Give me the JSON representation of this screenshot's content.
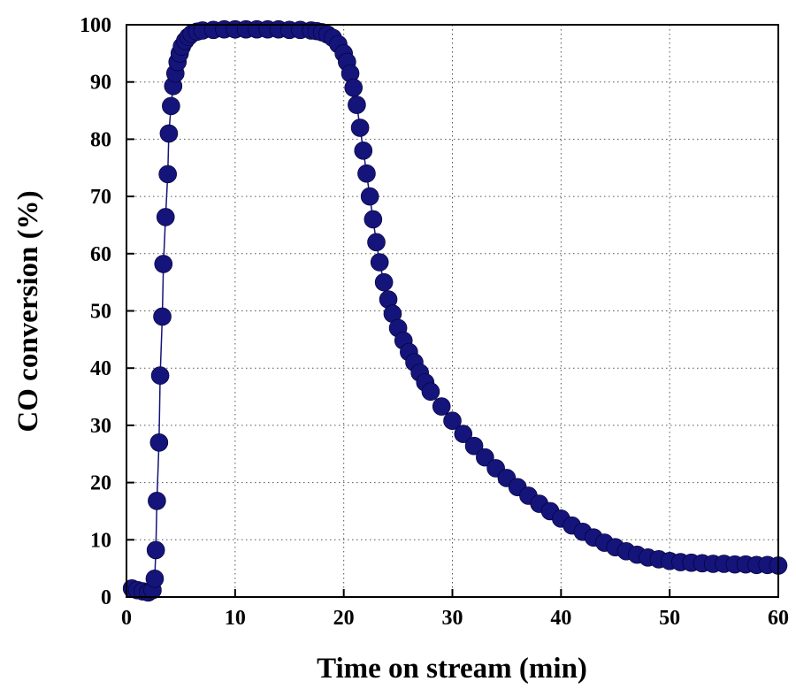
{
  "chart_data": {
    "type": "scatter",
    "title": "",
    "xlabel": "Time on stream (min)",
    "ylabel": "CO conversion (%)",
    "xlim": [
      0,
      60
    ],
    "ylim": [
      0,
      100
    ],
    "xticks": [
      "0",
      "10",
      "20",
      "30",
      "40",
      "50",
      "60"
    ],
    "yticks": [
      "0",
      "10",
      "20",
      "30",
      "40",
      "50",
      "60",
      "70",
      "80",
      "90",
      "100"
    ],
    "grid": true,
    "marker_color": "#14147a",
    "series": [
      {
        "points": [
          [
            0.5,
            1.5
          ],
          [
            1.0,
            1.2
          ],
          [
            1.5,
            1.0
          ],
          [
            2.0,
            0.8
          ],
          [
            2.4,
            1.2
          ],
          [
            2.6,
            3.2
          ],
          [
            2.7,
            8.2
          ],
          [
            2.8,
            16.8
          ],
          [
            3.0,
            27.0
          ],
          [
            3.1,
            38.7
          ],
          [
            3.3,
            49.0
          ],
          [
            3.4,
            58.2
          ],
          [
            3.6,
            66.4
          ],
          [
            3.8,
            73.9
          ],
          [
            3.9,
            81.0
          ],
          [
            4.1,
            85.8
          ],
          [
            4.3,
            89.3
          ],
          [
            4.5,
            91.5
          ],
          [
            4.7,
            93.5
          ],
          [
            4.9,
            95.0
          ],
          [
            5.1,
            96.2
          ],
          [
            5.4,
            97.2
          ],
          [
            5.7,
            97.9
          ],
          [
            6.0,
            98.4
          ],
          [
            6.5,
            98.8
          ],
          [
            7.0,
            99.0
          ],
          [
            8.0,
            99.1
          ],
          [
            9.0,
            99.2
          ],
          [
            10.0,
            99.2
          ],
          [
            11.0,
            99.2
          ],
          [
            12.0,
            99.2
          ],
          [
            13.0,
            99.2
          ],
          [
            14.0,
            99.2
          ],
          [
            15.0,
            99.1
          ],
          [
            16.0,
            99.1
          ],
          [
            17.0,
            99.0
          ],
          [
            17.5,
            98.9
          ],
          [
            18.0,
            98.7
          ],
          [
            18.5,
            98.3
          ],
          [
            19.0,
            97.7
          ],
          [
            19.5,
            96.6
          ],
          [
            20.0,
            95.0
          ],
          [
            20.3,
            93.5
          ],
          [
            20.6,
            91.5
          ],
          [
            20.9,
            89.0
          ],
          [
            21.2,
            86.0
          ],
          [
            21.5,
            82.0
          ],
          [
            21.8,
            78.0
          ],
          [
            22.1,
            74.0
          ],
          [
            22.4,
            70.0
          ],
          [
            22.7,
            66.0
          ],
          [
            23.0,
            62.0
          ],
          [
            23.3,
            58.5
          ],
          [
            23.7,
            55.0
          ],
          [
            24.1,
            52.0
          ],
          [
            24.5,
            49.5
          ],
          [
            25.0,
            47.0
          ],
          [
            25.5,
            44.8
          ],
          [
            26.0,
            42.8
          ],
          [
            26.5,
            41.0
          ],
          [
            27.0,
            39.2
          ],
          [
            27.5,
            37.5
          ],
          [
            28.0,
            35.9
          ],
          [
            29.0,
            33.3
          ],
          [
            30.0,
            30.8
          ],
          [
            31.0,
            28.5
          ],
          [
            32.0,
            26.4
          ],
          [
            33.0,
            24.4
          ],
          [
            34.0,
            22.5
          ],
          [
            35.0,
            20.8
          ],
          [
            36.0,
            19.2
          ],
          [
            37.0,
            17.7
          ],
          [
            38.0,
            16.3
          ],
          [
            39.0,
            15.0
          ],
          [
            40.0,
            13.7
          ],
          [
            41.0,
            12.5
          ],
          [
            42.0,
            11.4
          ],
          [
            43.0,
            10.4
          ],
          [
            44.0,
            9.5
          ],
          [
            45.0,
            8.7
          ],
          [
            46.0,
            8.0
          ],
          [
            47.0,
            7.4
          ],
          [
            48.0,
            6.9
          ],
          [
            49.0,
            6.6
          ],
          [
            50.0,
            6.3
          ],
          [
            51.0,
            6.1
          ],
          [
            52.0,
            6.0
          ],
          [
            53.0,
            5.9
          ],
          [
            54.0,
            5.8
          ],
          [
            55.0,
            5.8
          ],
          [
            56.0,
            5.7
          ],
          [
            57.0,
            5.7
          ],
          [
            58.0,
            5.6
          ],
          [
            59.0,
            5.6
          ],
          [
            60.0,
            5.5
          ]
        ]
      }
    ]
  }
}
